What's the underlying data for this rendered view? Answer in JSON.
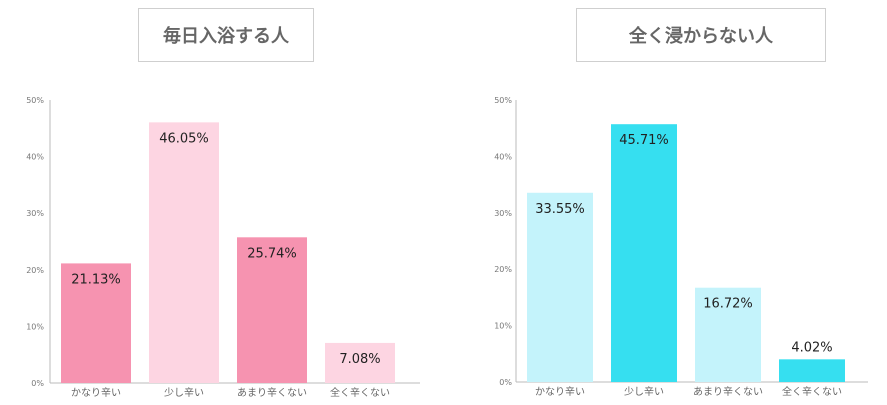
{
  "chart_data": [
    {
      "type": "bar",
      "title": "毎日入浴する人",
      "categories": [
        "かなり辛い",
        "少し辛い",
        "あまり辛くない",
        "全く辛くない"
      ],
      "values": [
        21.13,
        46.05,
        25.74,
        7.08
      ],
      "value_labels": [
        "21.13%",
        "46.05%",
        "25.74%",
        "7.08%"
      ],
      "yticks": [
        "0%",
        "10%",
        "20%",
        "30%",
        "40%",
        "50%"
      ],
      "ylim": [
        0,
        50
      ],
      "colors": [
        "#f693b0",
        "#fdd5e2",
        "#f693b0",
        "#fdd5e2"
      ],
      "grid": false
    },
    {
      "type": "bar",
      "title": "全く浸からない人",
      "categories": [
        "かなり辛い",
        "少し辛い",
        "あまり辛くない",
        "全く辛くない"
      ],
      "values": [
        33.55,
        45.71,
        16.72,
        4.02
      ],
      "value_labels": [
        "33.55%",
        "45.71%",
        "16.72%",
        "4.02%"
      ],
      "yticks": [
        "0%",
        "10%",
        "20%",
        "30%",
        "40%",
        "50%"
      ],
      "ylim": [
        0,
        50
      ],
      "colors": [
        "#c4f3fb",
        "#36dff0",
        "#c4f3fb",
        "#36dff0"
      ],
      "grid": false
    }
  ]
}
